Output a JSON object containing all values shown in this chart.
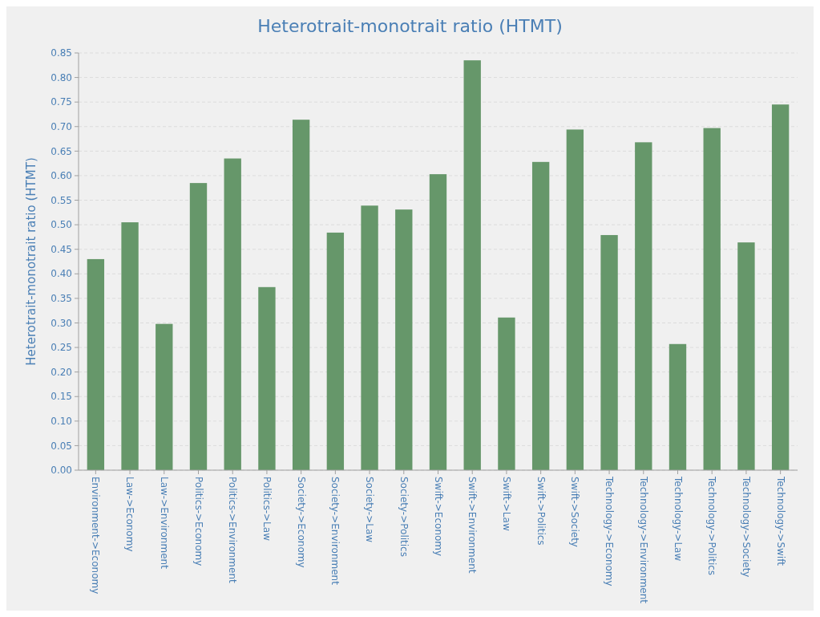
{
  "chart_data": {
    "type": "bar",
    "title": "Heterotrait-monotrait ratio (HTMT)",
    "ylabel": "Heterotrait-monotrait ratio (HTMT)",
    "categories": [
      "Environment->Economy",
      "Law->Economy",
      "Law->Environment",
      "Politics->Economy",
      "Politics->Environment",
      "Politics->Law",
      "Society->Economy",
      "Society->Environment",
      "Society->Law",
      "Society->Politics",
      "Swift->Economy",
      "Swift->Environment",
      "Swift->Law",
      "Swift->Politics",
      "Swift->Society",
      "Technology->Economy",
      "Technology->Environment",
      "Technology->Law",
      "Technology->Politics",
      "Technology->Society",
      "Technology->Swift"
    ],
    "values": [
      0.43,
      0.505,
      0.298,
      0.585,
      0.635,
      0.373,
      0.714,
      0.484,
      0.539,
      0.531,
      0.603,
      0.835,
      0.311,
      0.628,
      0.694,
      0.479,
      0.668,
      0.257,
      0.697,
      0.464,
      0.745
    ],
    "color": "#66976a",
    "ylim": [
      0,
      0.85
    ],
    "yticks": [
      {
        "value": 0,
        "label": "0.00"
      },
      {
        "value": 0.05,
        "label": "0.05"
      },
      {
        "value": 0.1,
        "label": "0.10"
      },
      {
        "value": 0.15,
        "label": "0.15"
      },
      {
        "value": 0.2,
        "label": "0.20"
      },
      {
        "value": 0.25,
        "label": "0.25"
      },
      {
        "value": 0.3,
        "label": "0.30"
      },
      {
        "value": 0.35,
        "label": "0.35"
      },
      {
        "value": 0.4,
        "label": "0.40"
      },
      {
        "value": 0.45,
        "label": "0.45"
      },
      {
        "value": 0.5,
        "label": "0.50"
      },
      {
        "value": 0.55,
        "label": "0.55"
      },
      {
        "value": 0.6,
        "label": "0.60"
      },
      {
        "value": 0.65,
        "label": "0.65"
      },
      {
        "value": 0.7,
        "label": "0.70"
      },
      {
        "value": 0.75,
        "label": "0.75"
      },
      {
        "value": 0.8,
        "label": "0.80"
      },
      {
        "value": 0.85,
        "label": "0.85"
      }
    ],
    "grid": "y"
  }
}
